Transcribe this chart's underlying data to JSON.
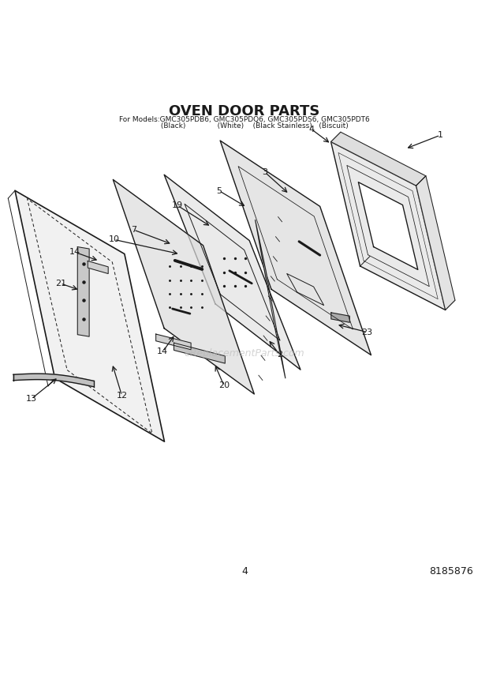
{
  "title": "OVEN DOOR PARTS",
  "subtitle1": "For Models:GMC305PDB6, GMC305PDQ6, GMC305PDS6, GMC305PDT6",
  "subtitle2": "         (Black)              (White)    (Black Stainless)   (Biscuit)",
  "page_number": "4",
  "part_number": "8185876",
  "watermark": "eReplacementParts.com",
  "background_color": "#ffffff",
  "line_color": "#1a1a1a"
}
